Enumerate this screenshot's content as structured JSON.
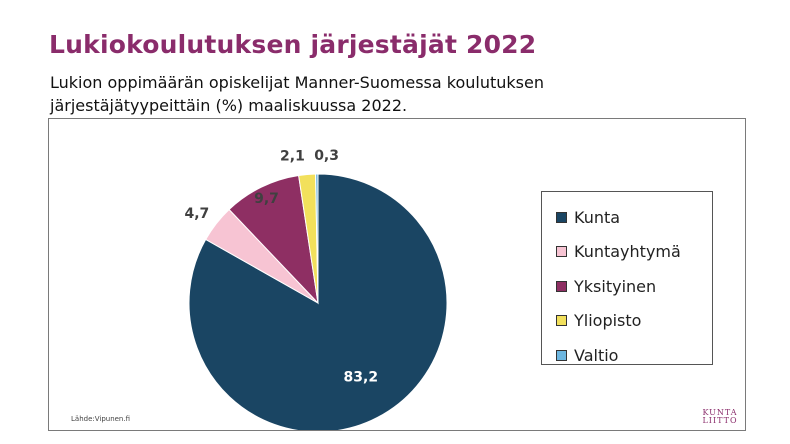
{
  "title": "Lukiokoulutuksen järjestäjät 2022",
  "subtitle": "Lukion oppimäärän opiskelijat Manner-Suomessa koulutuksen järjestäjätyypeittäin (%) maaliskuussa 2022.",
  "source": "Lähde:Vipunen.fi",
  "logo": {
    "line1": "KUNTA",
    "line2": "LIITTO"
  },
  "chart_data": {
    "type": "pie",
    "title": "",
    "labels": [
      "Kunta",
      "Kuntayhtymä",
      "Yksityinen",
      "Yliopisto",
      "Valtio"
    ],
    "values": [
      83.2,
      4.7,
      9.7,
      2.1,
      0.3
    ],
    "data_labels": [
      "83,2",
      "4,7",
      "9,7",
      "2,1",
      "0,3"
    ],
    "colors": [
      "#1a4563",
      "#f7c4d3",
      "#8e2f63",
      "#f2e05c",
      "#6cb6e0"
    ],
    "start_angle_deg": 0,
    "direction": "clockwise",
    "legend_position": "right"
  }
}
